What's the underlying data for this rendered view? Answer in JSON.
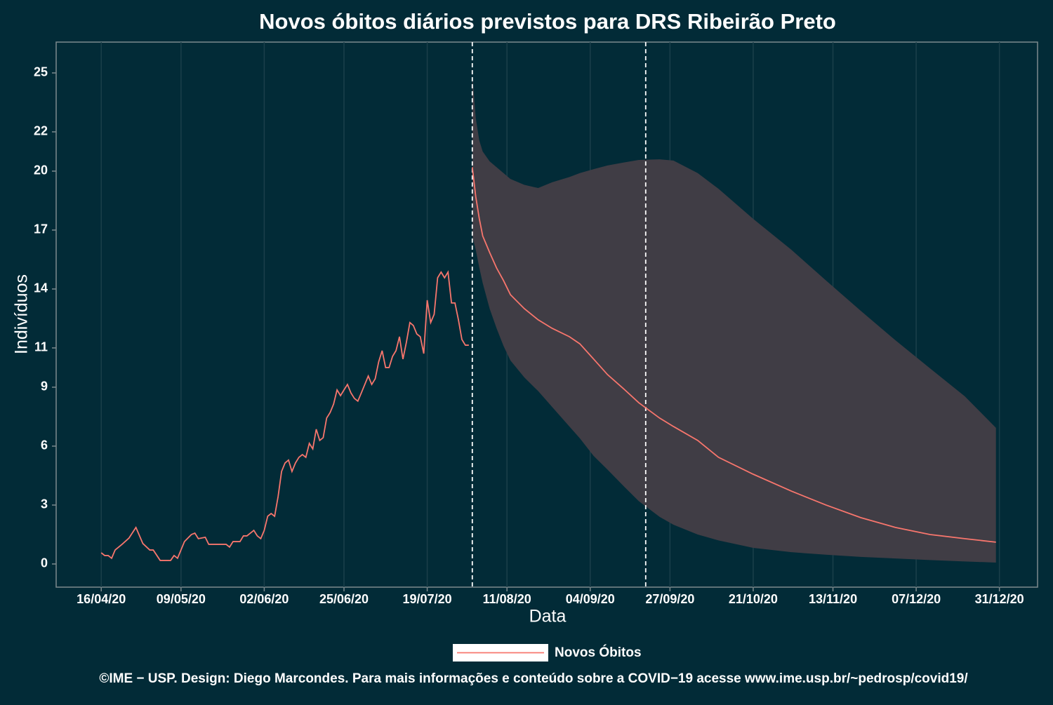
{
  "chart_data": {
    "type": "line",
    "title": "Novos óbitos diários previstos para DRS Ribeirão Preto",
    "xlabel": "Data",
    "ylabel": "Indivíduos",
    "caption": "©IME − USP. Design: Diego Marcondes. Para mais informações e conteúdo sobre a COVID−19 acesse www.ime.usp.br/~pedrosp/covid19/",
    "xlim": [
      "2020-04-03",
      "2021-01-11"
    ],
    "ylim": [
      -1.18,
      26.57
    ],
    "xticks": [
      {
        "value": "2020-04-16",
        "label": "16/04/20"
      },
      {
        "value": "2020-05-09",
        "label": "09/05/20"
      },
      {
        "value": "2020-06-02",
        "label": "02/06/20"
      },
      {
        "value": "2020-06-25",
        "label": "25/06/20"
      },
      {
        "value": "2020-07-19",
        "label": "19/07/20"
      },
      {
        "value": "2020-08-11",
        "label": "11/08/20"
      },
      {
        "value": "2020-09-04",
        "label": "04/09/20"
      },
      {
        "value": "2020-09-27",
        "label": "27/09/20"
      },
      {
        "value": "2020-10-21",
        "label": "21/10/20"
      },
      {
        "value": "2020-11-13",
        "label": "13/11/20"
      },
      {
        "value": "2020-12-07",
        "label": "07/12/20"
      },
      {
        "value": "2020-12-31",
        "label": "31/12/20"
      }
    ],
    "yticks": [
      0,
      3,
      6,
      9,
      11,
      14,
      17,
      20,
      22,
      25
    ],
    "grid": true,
    "legend": "bottom",
    "vlines": [
      "2020-08-01",
      "2020-09-20"
    ],
    "series": [
      {
        "name": "Novos Óbitos",
        "color": "#f8766d",
        "x": [
          "2020-04-16",
          "2020-04-17",
          "2020-04-18",
          "2020-04-19",
          "2020-04-20",
          "2020-04-22",
          "2020-04-24",
          "2020-04-26",
          "2020-04-28",
          "2020-04-30",
          "2020-05-01",
          "2020-05-03",
          "2020-05-06",
          "2020-05-07",
          "2020-05-08",
          "2020-05-10",
          "2020-05-12",
          "2020-05-13",
          "2020-05-14",
          "2020-05-16",
          "2020-05-17",
          "2020-05-22",
          "2020-05-23",
          "2020-05-24",
          "2020-05-26",
          "2020-05-27",
          "2020-05-28",
          "2020-05-30",
          "2020-05-31",
          "2020-06-01",
          "2020-06-02",
          "2020-06-03",
          "2020-06-04",
          "2020-06-05",
          "2020-06-06",
          "2020-06-07",
          "2020-06-08",
          "2020-06-09",
          "2020-06-10",
          "2020-06-11",
          "2020-06-12",
          "2020-06-13",
          "2020-06-14",
          "2020-06-15",
          "2020-06-16",
          "2020-06-17",
          "2020-06-18",
          "2020-06-19",
          "2020-06-20",
          "2020-06-21",
          "2020-06-22",
          "2020-06-23",
          "2020-06-24",
          "2020-06-25",
          "2020-06-26",
          "2020-06-27",
          "2020-06-28",
          "2020-06-29",
          "2020-06-30",
          "2020-07-01",
          "2020-07-02",
          "2020-07-03",
          "2020-07-04",
          "2020-07-05",
          "2020-07-06",
          "2020-07-07",
          "2020-07-08",
          "2020-07-09",
          "2020-07-10",
          "2020-07-11",
          "2020-07-12",
          "2020-07-13",
          "2020-07-14",
          "2020-07-15",
          "2020-07-16",
          "2020-07-17",
          "2020-07-18",
          "2020-07-19",
          "2020-07-20",
          "2020-07-21",
          "2020-07-22",
          "2020-07-23",
          "2020-07-24",
          "2020-07-25",
          "2020-07-26",
          "2020-07-27",
          "2020-07-28",
          "2020-07-29",
          "2020-07-30",
          "2020-07-31"
        ],
        "values": [
          0.57,
          0.43,
          0.43,
          0.29,
          0.71,
          1.0,
          1.32,
          1.86,
          1.04,
          0.71,
          0.71,
          0.18,
          0.18,
          0.43,
          0.29,
          1.14,
          1.5,
          1.57,
          1.29,
          1.36,
          1.0,
          1.0,
          0.86,
          1.14,
          1.14,
          1.43,
          1.43,
          1.71,
          1.43,
          1.29,
          1.71,
          2.43,
          2.57,
          2.43,
          3.43,
          4.71,
          5.14,
          5.29,
          4.71,
          5.14,
          5.43,
          5.57,
          5.43,
          6.14,
          5.86,
          6.86,
          6.29,
          6.43,
          7.43,
          7.71,
          8.14,
          8.86,
          8.57,
          8.86,
          9.14,
          8.71,
          8.43,
          8.29,
          8.71,
          9.14,
          9.57,
          9.14,
          9.43,
          10.29,
          10.86,
          10.0,
          10.0,
          10.57,
          10.86,
          11.57,
          10.43,
          11.29,
          12.29,
          12.14,
          11.71,
          11.57,
          10.71,
          13.43,
          12.29,
          12.71,
          14.57,
          14.86,
          14.57,
          14.86,
          13.29,
          13.29,
          12.43,
          11.43,
          11.14,
          11.14
        ]
      },
      {
        "color": "#f8766d",
        "band_color": "#403d45",
        "x": [
          "2020-08-01",
          "2020-08-02",
          "2020-08-03",
          "2020-08-04",
          "2020-08-06",
          "2020-08-08",
          "2020-08-10",
          "2020-08-12",
          "2020-08-16",
          "2020-08-20",
          "2020-08-24",
          "2020-08-29",
          "2020-09-01",
          "2020-09-05",
          "2020-09-09",
          "2020-09-14",
          "2020-09-18",
          "2020-09-24",
          "2020-09-28",
          "2020-10-05",
          "2020-10-11",
          "2020-10-21",
          "2020-11-01",
          "2020-11-11",
          "2020-11-21",
          "2020-12-01",
          "2020-12-11",
          "2020-12-21",
          "2020-12-30"
        ],
        "values": [
          20.2,
          18.7,
          17.6,
          16.7,
          15.86,
          15.07,
          14.43,
          13.71,
          13.0,
          12.43,
          12.0,
          11.57,
          11.21,
          10.43,
          9.64,
          8.86,
          8.21,
          7.43,
          7.0,
          6.29,
          5.43,
          4.57,
          3.71,
          3.0,
          2.36,
          1.86,
          1.5,
          1.29,
          1.11
        ],
        "upper": [
          24.96,
          22.7,
          21.57,
          21.0,
          20.5,
          20.2,
          19.9,
          19.6,
          19.3,
          19.14,
          19.43,
          19.7,
          19.9,
          20.1,
          20.29,
          20.45,
          20.57,
          20.6,
          20.54,
          19.9,
          19.1,
          17.57,
          16.0,
          14.43,
          12.89,
          11.39,
          9.96,
          8.54,
          6.93
        ],
        "lower": [
          16.7,
          16.0,
          15.1,
          14.3,
          13.0,
          12.0,
          11.1,
          10.36,
          9.5,
          8.8,
          8.0,
          7.0,
          6.4,
          5.5,
          4.8,
          3.9,
          3.2,
          2.4,
          2.0,
          1.5,
          1.2,
          0.82,
          0.6,
          0.47,
          0.36,
          0.28,
          0.2,
          0.13,
          0.07
        ]
      }
    ]
  }
}
